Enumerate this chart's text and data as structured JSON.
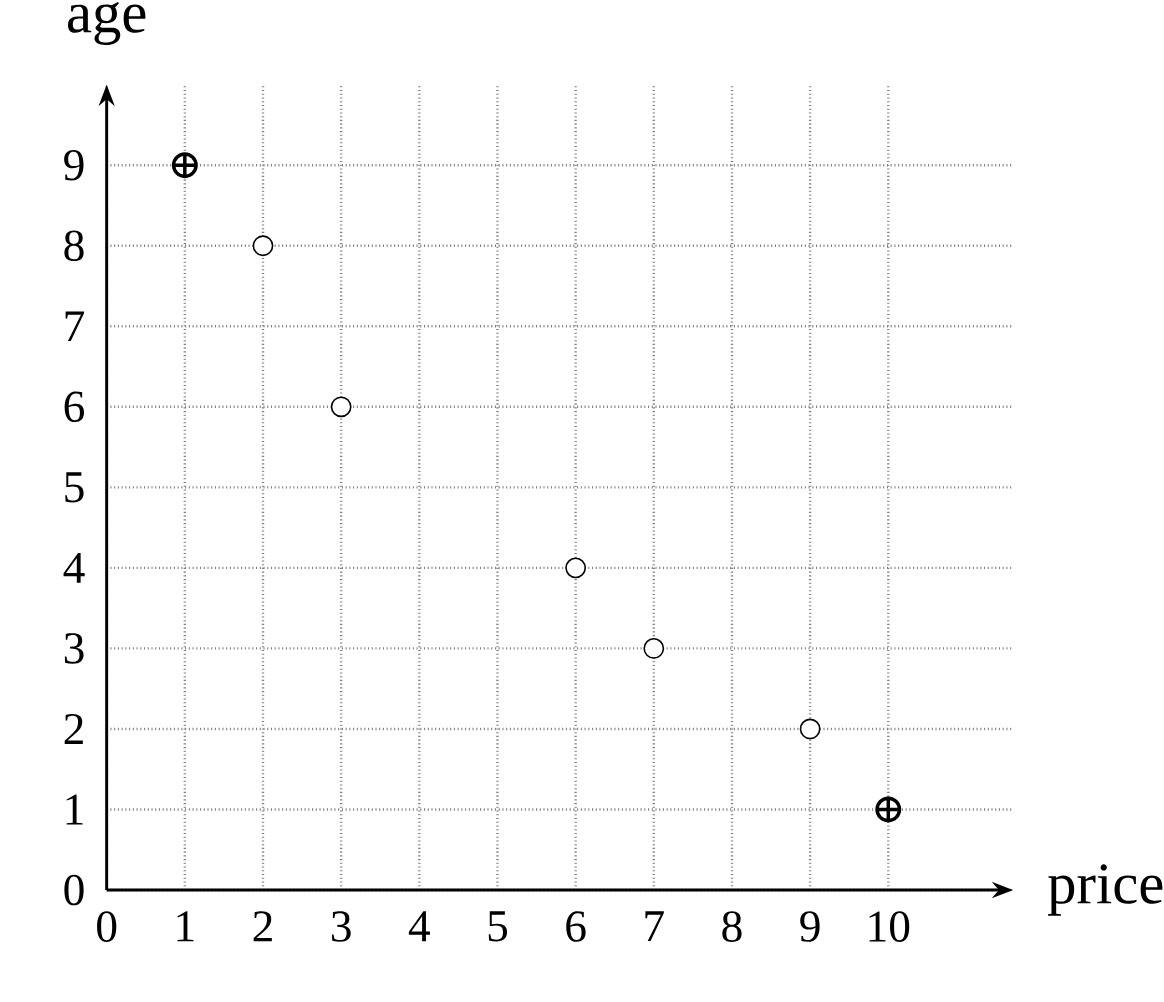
{
  "chart_data": {
    "type": "scatter",
    "xlabel": "price",
    "ylabel": "age",
    "xlim": [
      0,
      11.6
    ],
    "ylim": [
      0,
      10
    ],
    "xticks": [
      0,
      1,
      2,
      3,
      4,
      5,
      6,
      7,
      8,
      9,
      10
    ],
    "yticks": [
      0,
      1,
      2,
      3,
      4,
      5,
      6,
      7,
      8,
      9
    ],
    "grid": true,
    "line_style": "dotted",
    "series": [
      {
        "color": "#000000",
        "marker": "circle",
        "x": [
          2,
          3,
          6,
          7,
          9
        ],
        "values": [
          8,
          6,
          4,
          3,
          2
        ]
      },
      {
        "color": "#000000",
        "marker": "cross",
        "x": [
          1,
          10
        ],
        "values": [
          9,
          1
        ]
      }
    ]
  }
}
